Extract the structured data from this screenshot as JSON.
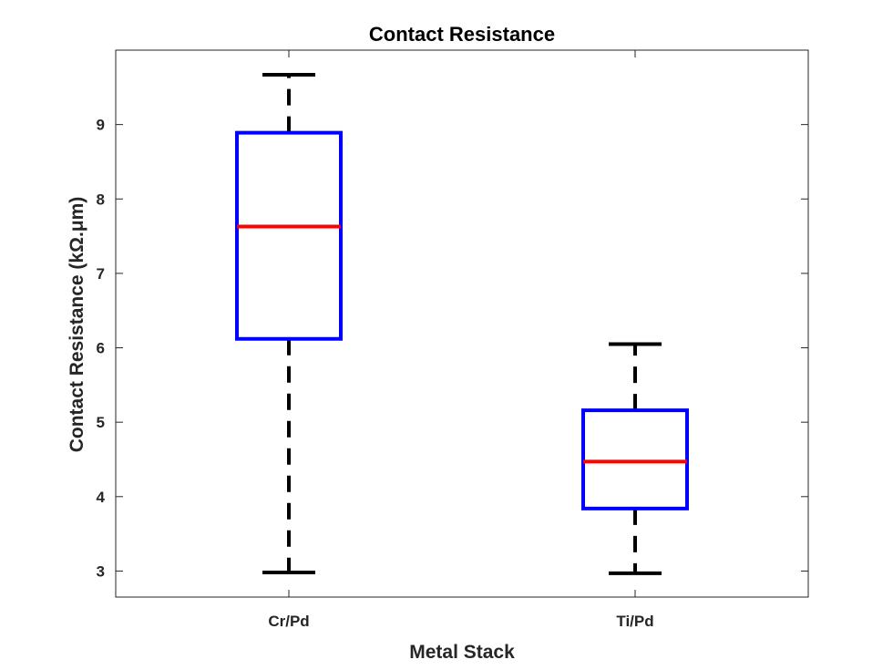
{
  "chart_data": {
    "type": "boxplot",
    "title": "Contact Resistance",
    "xlabel": "Metal Stack",
    "ylabel": "Contact Resistance (kΩ.μm)",
    "ylim": [
      2.65,
      10.0
    ],
    "yticks": [
      3,
      4,
      5,
      6,
      7,
      8,
      9
    ],
    "grid": false,
    "categories": [
      "Cr/Pd",
      "Ti/Pd"
    ],
    "boxes": [
      {
        "name": "Cr/Pd",
        "whisker_low": 2.98,
        "q1": 6.12,
        "median": 7.63,
        "q3": 8.89,
        "whisker_high": 9.67
      },
      {
        "name": "Ti/Pd",
        "whisker_low": 2.97,
        "q1": 3.84,
        "median": 4.47,
        "q3": 5.16,
        "whisker_high": 6.05
      }
    ],
    "colors": {
      "box": "#0000ff",
      "median": "#ff0000",
      "whisker": "#000000",
      "axis": "#262626"
    }
  }
}
